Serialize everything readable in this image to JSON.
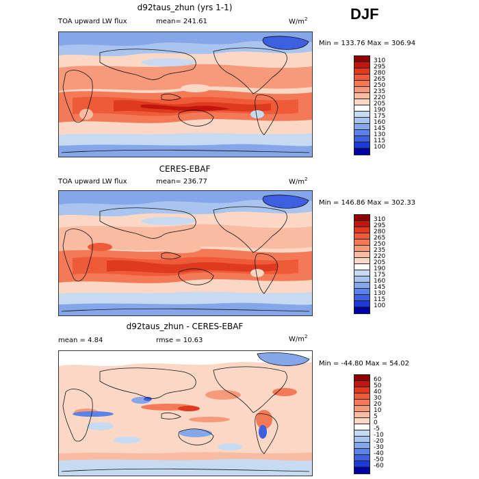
{
  "season": "DJF",
  "panels": [
    {
      "title": "d92taus_zhun (yrs 1-1)",
      "left_label": "TOA upward LW flux",
      "stat1": "mean=  241.61",
      "stat2": "",
      "units": "W/m",
      "units_exp": "2",
      "minmax": "Min = 133.76 Max = 306.94",
      "levels": [
        "310",
        "295",
        "280",
        "265",
        "250",
        "235",
        "220",
        "205",
        "190",
        "175",
        "160",
        "145",
        "130",
        "115",
        "100"
      ],
      "colors": [
        "#8b0000",
        "#c2150e",
        "#dd3a1f",
        "#ef5a38",
        "#f47a57",
        "#f79a7c",
        "#f9bba2",
        "#fbd8c6",
        "#ffffff",
        "#c6dbf2",
        "#a9c4ee",
        "#86a6ea",
        "#5b82e6",
        "#3d5fe0",
        "#1d3ad6",
        "#0000a0"
      ]
    },
    {
      "title": "CERES-EBAF",
      "left_label": "TOA upward LW flux",
      "stat1": "mean=  236.77",
      "stat2": "",
      "units": "W/m",
      "units_exp": "2",
      "minmax": "Min = 146.86 Max = 302.33",
      "levels": [
        "310",
        "295",
        "280",
        "265",
        "250",
        "235",
        "220",
        "205",
        "190",
        "175",
        "160",
        "145",
        "130",
        "115",
        "100"
      ],
      "colors": [
        "#8b0000",
        "#c2150e",
        "#dd3a1f",
        "#ef5a38",
        "#f47a57",
        "#f79a7c",
        "#f9bba2",
        "#fbd8c6",
        "#ffffff",
        "#c6dbf2",
        "#a9c4ee",
        "#86a6ea",
        "#5b82e6",
        "#3d5fe0",
        "#1d3ad6",
        "#0000a0"
      ]
    },
    {
      "title": "d92taus_zhun - CERES-EBAF",
      "left_label": "mean =    4.84",
      "stat1": "rmse =   10.63",
      "stat2": "",
      "units": "W/m",
      "units_exp": "2",
      "minmax": "Min = -44.80 Max =  54.02",
      "levels": [
        "60",
        "50",
        "40",
        "30",
        "20",
        "10",
        "5",
        "0",
        "-5",
        "-10",
        "-20",
        "-30",
        "-40",
        "-50",
        "-60"
      ],
      "colors": [
        "#8b0000",
        "#c2150e",
        "#dd3a1f",
        "#ef5a38",
        "#f47a57",
        "#f79a7c",
        "#f9bba2",
        "#fbd8c6",
        "#ffffff",
        "#c6dbf2",
        "#a9c4ee",
        "#86a6ea",
        "#5b82e6",
        "#3d5fe0",
        "#1d3ad6",
        "#0000a0"
      ]
    }
  ]
}
